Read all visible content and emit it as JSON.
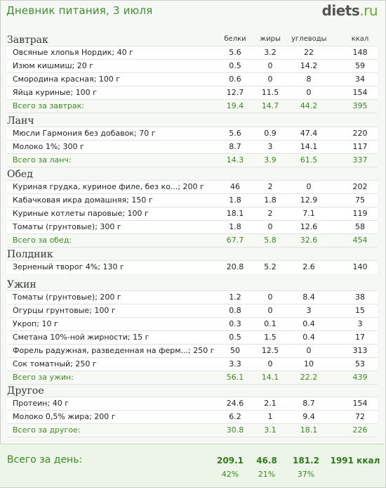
{
  "title": "Дневник питания, 3 июля",
  "logo": {
    "name": "diets",
    "tld": ".ru"
  },
  "columns": {
    "protein": "белки",
    "fat": "жиры",
    "carbs": "углеводы",
    "kcal": "ккал"
  },
  "meals": [
    {
      "name": "Завтрак",
      "items": [
        [
          "Овсяные хлопья Нордик; 40 г",
          "5.6",
          "3.2",
          "22",
          "148"
        ],
        [
          "Изюм кишмиш; 20 г",
          "0.5",
          "0",
          "14.2",
          "59"
        ],
        [
          "Смородина красная; 100 г",
          "0.6",
          "0",
          "8",
          "34"
        ],
        [
          "Яйца куриные; 100 г",
          "12.7",
          "11.5",
          "0",
          "154"
        ]
      ],
      "total": [
        "Всего за завтрак:",
        "19.4",
        "14.7",
        "44.2",
        "395"
      ]
    },
    {
      "name": "Ланч",
      "items": [
        [
          "Мюсли Гармония без добавок; 70 г",
          "5.6",
          "0.9",
          "47.4",
          "220"
        ],
        [
          "Молоко 1%; 300 г",
          "8.7",
          "3",
          "14.1",
          "117"
        ]
      ],
      "total": [
        "Всего за ланч:",
        "14.3",
        "3.9",
        "61.5",
        "337"
      ]
    },
    {
      "name": "Обед",
      "items": [
        [
          "Куриная грудка, куриное филе, без ко...; 200 г",
          "46",
          "2",
          "0",
          "202"
        ],
        [
          "Кабачковая икра домашняя; 150 г",
          "1.8",
          "1.8",
          "12.9",
          "75"
        ],
        [
          "Куриные котлеты паровые; 100 г",
          "18.1",
          "2",
          "7.1",
          "119"
        ],
        [
          "Томаты (грунтовые); 300 г",
          "1.8",
          "0",
          "12.6",
          "58"
        ]
      ],
      "total": [
        "Всего за обед:",
        "67.7",
        "5.8",
        "32.6",
        "454"
      ]
    },
    {
      "name": "Полдник",
      "items": [
        [
          "Зерненый творог 4%; 130 г",
          "20.8",
          "5.2",
          "2.6",
          "140"
        ]
      ],
      "total": null
    },
    {
      "name": "Ужин",
      "items": [
        [
          "Томаты (грунтовые); 200 г",
          "1.2",
          "0",
          "8.4",
          "38"
        ],
        [
          "Огурцы грунтовые; 100 г",
          "0.8",
          "0",
          "3",
          "15"
        ],
        [
          "Укроп; 10 г",
          "0.3",
          "0.1",
          "0.4",
          "3"
        ],
        [
          "Сметана 10%-ной жирности; 15 г",
          "0.5",
          "1.5",
          "0.4",
          "17"
        ],
        [
          "Форель радужная, разведенная на ферм...; 250 г",
          "50",
          "12.5",
          "0",
          "313"
        ],
        [
          "Сок томатный; 250 г",
          "3.3",
          "0",
          "10",
          "53"
        ]
      ],
      "total": [
        "Всего за ужин:",
        "56.1",
        "14.1",
        "22.2",
        "439"
      ]
    },
    {
      "name": "Другое",
      "items": [
        [
          "Протеин; 40 г",
          "24.6",
          "2.1",
          "8.7",
          "154"
        ],
        [
          "Молоко 0,5% жира; 200 г",
          "6.2",
          "1",
          "9.4",
          "72"
        ]
      ],
      "total": [
        "Всего за другое:",
        "30.8",
        "3.1",
        "18.1",
        "226"
      ]
    }
  ],
  "day": {
    "label": "Всего за день:",
    "protein": "209.1",
    "fat": "46.8",
    "carbs": "181.2",
    "kcal": "1991 ккал",
    "protein_pct": "42%",
    "fat_pct": "21%",
    "carbs_pct": "37%"
  }
}
